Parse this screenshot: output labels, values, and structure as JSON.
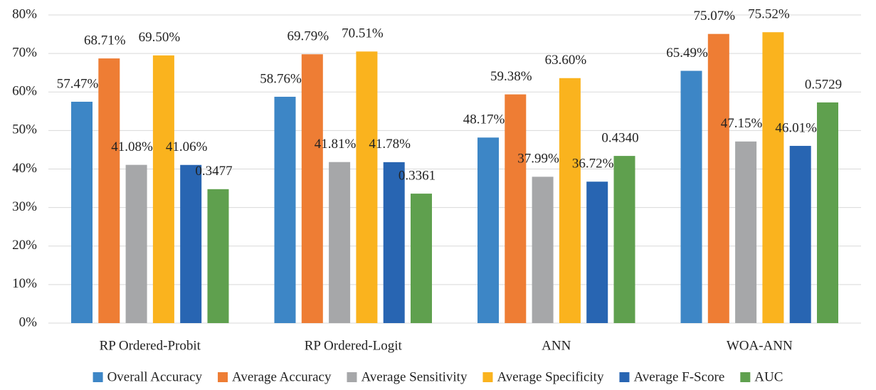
{
  "chart_data": {
    "type": "bar",
    "categories": [
      "RP Ordered-Probit",
      "RP Ordered-Logit",
      "ANN",
      "WOA-ANN"
    ],
    "series": [
      {
        "name": "Overall Accuracy",
        "color": "#3d86c6",
        "values": [
          57.47,
          58.76,
          48.17,
          65.49
        ],
        "value_labels": [
          "57.47%",
          "58.76%",
          "48.17%",
          "65.49%"
        ]
      },
      {
        "name": "Average Accuracy",
        "color": "#ee7d34",
        "values": [
          68.71,
          69.79,
          59.38,
          75.07
        ],
        "value_labels": [
          "68.71%",
          "69.79%",
          "59.38%",
          "75.07%"
        ]
      },
      {
        "name": "Average Sensitivity",
        "color": "#a6a7a9",
        "values": [
          41.08,
          41.81,
          37.99,
          47.15
        ],
        "value_labels": [
          "41.08%",
          "41.81%",
          "37.99%",
          "47.15%"
        ]
      },
      {
        "name": "Average Specificity",
        "color": "#fab31e",
        "values": [
          69.5,
          70.51,
          63.6,
          75.52
        ],
        "value_labels": [
          "69.50%",
          "70.51%",
          "63.60%",
          "75.52%"
        ]
      },
      {
        "name": "Average F-Score",
        "color": "#2865b2",
        "values": [
          41.06,
          41.78,
          36.72,
          46.01
        ],
        "value_labels": [
          "41.06%",
          "41.78%",
          "36.72%",
          "46.01%"
        ]
      },
      {
        "name": "AUC",
        "color": "#5fa04e",
        "values": [
          34.77,
          33.61,
          43.4,
          57.29
        ],
        "value_labels": [
          "0.3477",
          "0.3361",
          "0.4340",
          "0.5729"
        ]
      }
    ],
    "ylim": [
      0,
      80
    ],
    "yticks": [
      {
        "value": 0,
        "label": "0%"
      },
      {
        "value": 10,
        "label": "10%"
      },
      {
        "value": 20,
        "label": "20%"
      },
      {
        "value": 30,
        "label": "30%"
      },
      {
        "value": 40,
        "label": "40%"
      },
      {
        "value": 50,
        "label": "50%"
      },
      {
        "value": 60,
        "label": "60%"
      },
      {
        "value": 70,
        "label": "70%"
      },
      {
        "value": 80,
        "label": "80%"
      }
    ],
    "grid": true,
    "legend": "bottom"
  }
}
